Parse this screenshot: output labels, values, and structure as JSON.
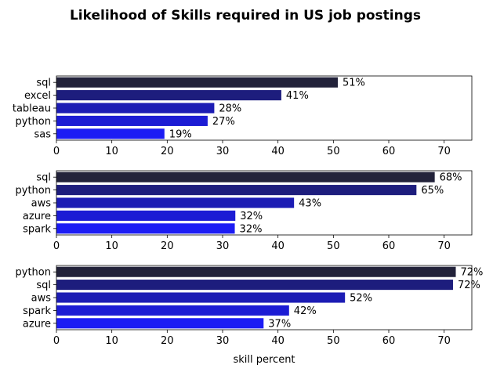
{
  "chart_data": {
    "type": "bar",
    "orientation": "horizontal",
    "title": "Likelihood of Skills required in US job postings",
    "xlabel": "skill percent",
    "xlim": [
      0,
      75
    ],
    "xticks": [
      0,
      10,
      20,
      30,
      40,
      50,
      60,
      70
    ],
    "grid": false,
    "bar_colors": [
      "#22223a",
      "#1d1d7d",
      "#1c1cb4",
      "#1c1cd4",
      "#1c1cf4"
    ],
    "panels": [
      {
        "categories": [
          "sql",
          "excel",
          "tableau",
          "python",
          "sas"
        ],
        "values": [
          50.8,
          40.6,
          28.5,
          27.3,
          19.5
        ],
        "labels": [
          "51%",
          "41%",
          "28%",
          "27%",
          "19%"
        ]
      },
      {
        "categories": [
          "sql",
          "python",
          "aws",
          "azure",
          "spark"
        ],
        "values": [
          68.3,
          65.0,
          42.9,
          32.3,
          32.2
        ],
        "labels": [
          "68%",
          "65%",
          "43%",
          "32%",
          "32%"
        ]
      },
      {
        "categories": [
          "python",
          "sql",
          "aws",
          "spark",
          "azure"
        ],
        "values": [
          72.1,
          71.6,
          52.1,
          42.0,
          37.4
        ],
        "labels": [
          "72%",
          "72%",
          "52%",
          "42%",
          "37%"
        ]
      }
    ]
  }
}
